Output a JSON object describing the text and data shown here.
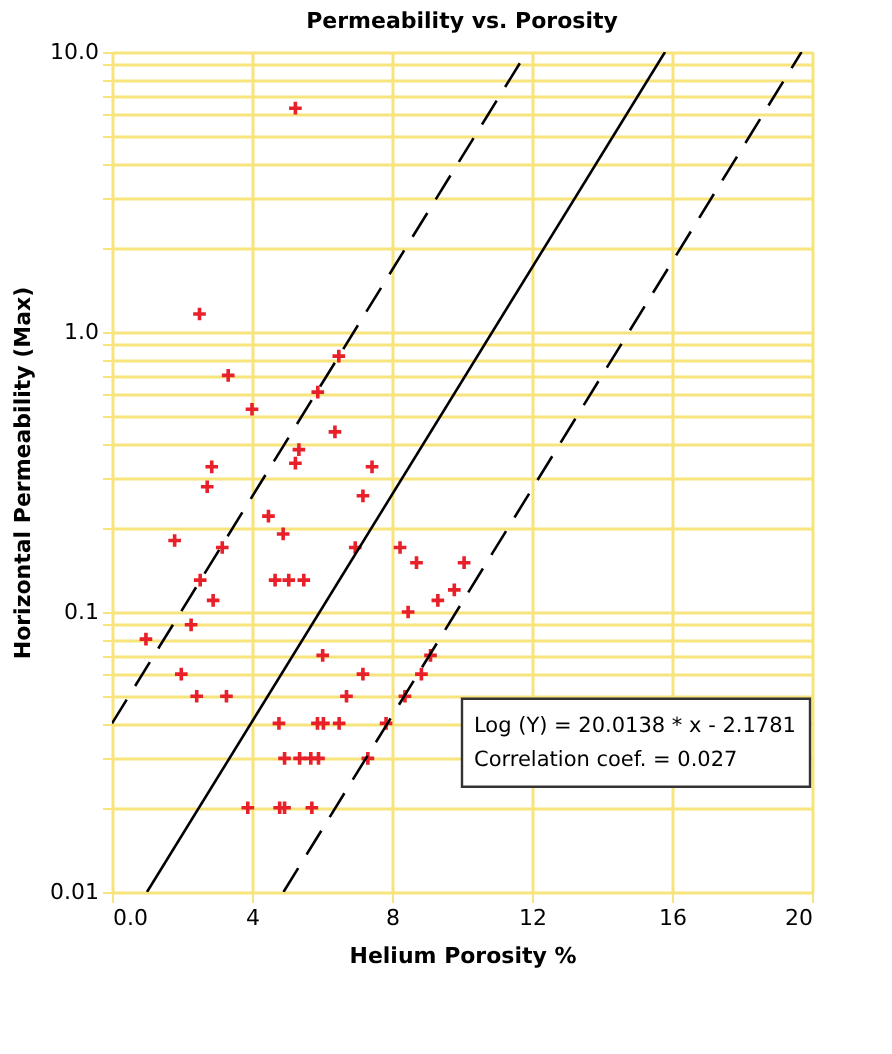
{
  "chart_data": {
    "type": "scatter",
    "title": "Permeability vs. Porosity",
    "xlabel": "Helium Porosity %",
    "ylabel": "Horizontal Permeability (Max)",
    "log": "y",
    "grid": true,
    "marker": "cross",
    "xlim": [
      0,
      20
    ],
    "xticks": [
      {
        "value": 0,
        "label": "0.0"
      },
      4,
      8,
      12,
      16,
      20
    ],
    "ylim": [
      0.01,
      10
    ],
    "yticks": [
      0.01,
      {
        "value": 0.02,
        "label": null
      },
      {
        "value": 0.03,
        "label": null
      },
      {
        "value": 0.04,
        "label": null
      },
      {
        "value": 0.05,
        "label": null
      },
      {
        "value": 0.06,
        "label": null
      },
      {
        "value": 0.07,
        "label": null
      },
      {
        "value": 0.08,
        "label": null
      },
      {
        "value": 0.09,
        "label": null
      },
      0.1,
      {
        "value": 0.2,
        "label": null
      },
      {
        "value": 0.3,
        "label": null
      },
      {
        "value": 0.4,
        "label": null
      },
      {
        "value": 0.5,
        "label": null
      },
      {
        "value": 0.6,
        "label": null
      },
      {
        "value": 0.7,
        "label": null
      },
      {
        "value": 0.8,
        "label": null
      },
      {
        "value": 0.9,
        "label": null
      },
      {
        "value": 1,
        "label": "1.0"
      },
      {
        "value": 2,
        "label": null
      },
      {
        "value": 3,
        "label": null
      },
      {
        "value": 4,
        "label": null
      },
      {
        "value": 5,
        "label": null
      },
      {
        "value": 6,
        "label": null
      },
      {
        "value": 7,
        "label": null
      },
      {
        "value": 8,
        "label": null
      },
      {
        "value": 9,
        "label": null
      },
      {
        "value": 10,
        "label": "10.0"
      }
    ],
    "annotations": [
      "Log (Y) = 20.0138 *    x - 2.1781",
      "Correlation coef. = 0.027"
    ],
    "series": [
      {
        "color": "#e8202a",
        "x": [
          5.24,
          2.5,
          6.48,
          3.32,
          5.88,
          4.0,
          6.37,
          5.34,
          5.24,
          2.85,
          7.43,
          2.72,
          7.17,
          4.47,
          4.89,
          1.79,
          6.95,
          3.15,
          8.23,
          8.7,
          10.06,
          2.52,
          4.66,
          5.05,
          5.48,
          2.89,
          9.31,
          9.78,
          8.46,
          2.26,
          0.97,
          6.02,
          9.1,
          1.98,
          7.17,
          8.84,
          2.42,
          3.27,
          6.7,
          8.37,
          4.77,
          5.87,
          6.04,
          6.49,
          7.83,
          4.93,
          5.36,
          5.68,
          5.9,
          7.31,
          3.88,
          4.79,
          4.93,
          5.71
        ],
        "values": [
          6.3,
          1.16,
          0.82,
          0.7,
          0.61,
          0.53,
          0.44,
          0.38,
          0.34,
          0.33,
          0.33,
          0.28,
          0.26,
          0.22,
          0.19,
          0.18,
          0.17,
          0.17,
          0.17,
          0.15,
          0.15,
          0.13,
          0.13,
          0.13,
          0.13,
          0.11,
          0.11,
          0.12,
          0.1,
          0.09,
          0.08,
          0.07,
          0.07,
          0.06,
          0.06,
          0.06,
          0.05,
          0.05,
          0.05,
          0.05,
          0.04,
          0.04,
          0.04,
          0.04,
          0.04,
          0.03,
          0.03,
          0.03,
          0.03,
          0.03,
          0.02,
          0.02,
          0.02,
          0.02
        ]
      },
      {
        "type": "line",
        "marker": "none",
        "color": "#000000",
        "line_style": "solid",
        "x": [
          1.0,
          15.8
        ],
        "values": [
          0.01,
          10
        ]
      },
      {
        "type": "line",
        "marker": "none",
        "color": "#000000",
        "line_style": "dashed",
        "x": [
          0,
          11.85
        ],
        "values": [
          0.04,
          10
        ]
      },
      {
        "type": "line",
        "marker": "none",
        "color": "#000000",
        "line_style": "dashed",
        "x": [
          4.9,
          19.7
        ],
        "values": [
          0.01,
          10
        ]
      }
    ]
  }
}
